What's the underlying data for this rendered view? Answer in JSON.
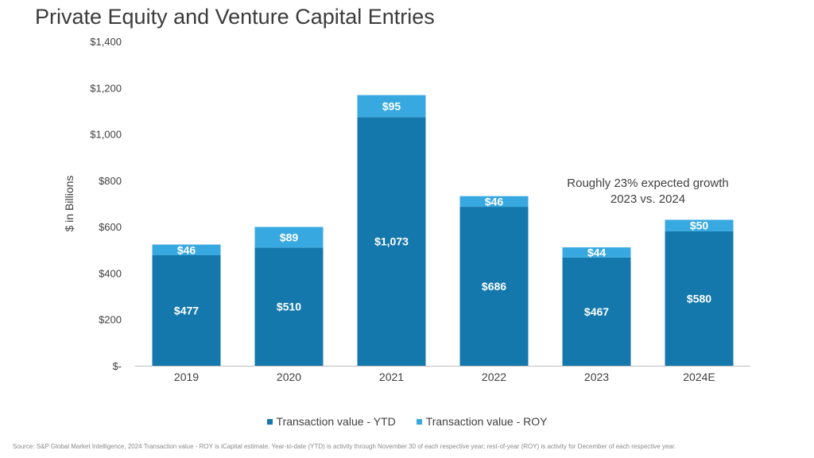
{
  "chart_data": {
    "type": "bar",
    "stacked": true,
    "title": "Private Equity and Venture Capital Entries",
    "ylabel": "$ in Billions",
    "xlabel": "",
    "ylim": [
      0,
      1400
    ],
    "yticks": [
      0,
      200,
      400,
      600,
      800,
      1000,
      1200,
      1400
    ],
    "ytick_labels": [
      "$-",
      "$200",
      "$400",
      "$600",
      "$800",
      "$1,000",
      "$1,200",
      "$1,400"
    ],
    "categories": [
      "2019",
      "2020",
      "2021",
      "2022",
      "2023",
      "2024E"
    ],
    "series": [
      {
        "name": "Transaction value - YTD",
        "color": "#1478ad",
        "values": [
          477,
          510,
          1073,
          686,
          467,
          580
        ],
        "labels": [
          "$477",
          "$510",
          "$1,073",
          "$686",
          "$467",
          "$580"
        ]
      },
      {
        "name": "Transaction value - ROY",
        "color": "#38a9e0",
        "values": [
          46,
          89,
          95,
          46,
          44,
          50
        ],
        "labels": [
          "$46",
          "$89",
          "$95",
          "$46",
          "$44",
          "$50"
        ]
      }
    ],
    "annotation": [
      "Roughly 23% expected growth",
      "2023 vs. 2024"
    ],
    "legend_position": "bottom-center",
    "grid": false
  },
  "source_note": "Source: S&P Global Market Intelligence, 2024 Transaction value - ROY is iCapital estimate. Year-to-date (YTD) is activity through November 30 of each respective year; rest-of-year (ROY) is activity for December of each respective year."
}
